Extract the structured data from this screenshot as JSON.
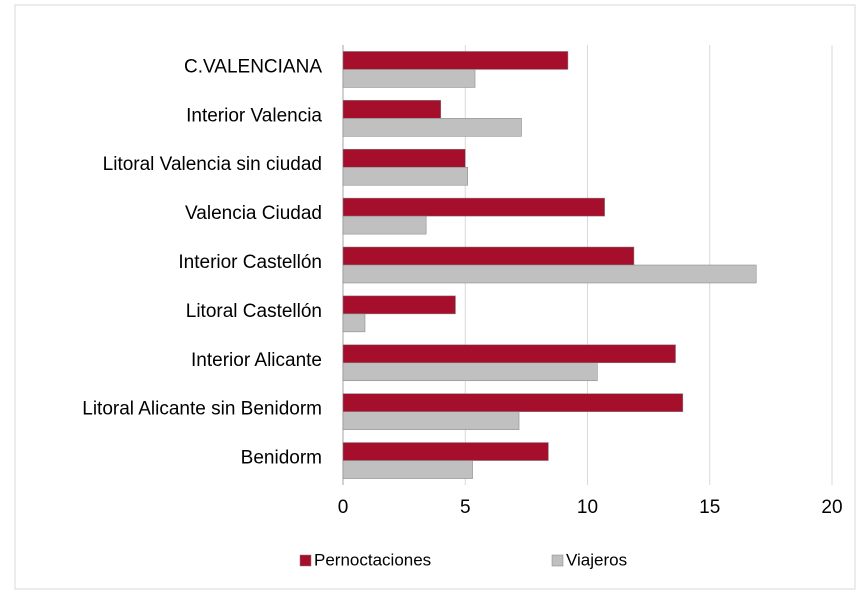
{
  "chart_data": {
    "type": "bar",
    "orientation": "horizontal",
    "categories": [
      "C.VALENCIANA",
      "Interior Valencia",
      "Litoral Valencia sin ciudad",
      "Valencia Ciudad ",
      "Interior Castellón",
      "Litoral Castellón",
      "Interior Alicante",
      "Litoral Alicante sin Benidorm",
      "Benidorm"
    ],
    "series": [
      {
        "name": "Pernoctaciones",
        "color": "#a50f2b",
        "values": [
          9.2,
          4.0,
          5.0,
          10.7,
          11.9,
          4.6,
          13.6,
          13.9,
          8.4
        ]
      },
      {
        "name": "Viajeros",
        "color": "#c0c0c0",
        "values": [
          5.4,
          7.3,
          5.1,
          3.4,
          16.9,
          0.9,
          10.4,
          7.2,
          5.3
        ]
      }
    ],
    "xlim": [
      0,
      20
    ],
    "xticks": [
      0,
      5,
      10,
      15,
      20
    ],
    "grid": true,
    "legend": "bottom"
  }
}
